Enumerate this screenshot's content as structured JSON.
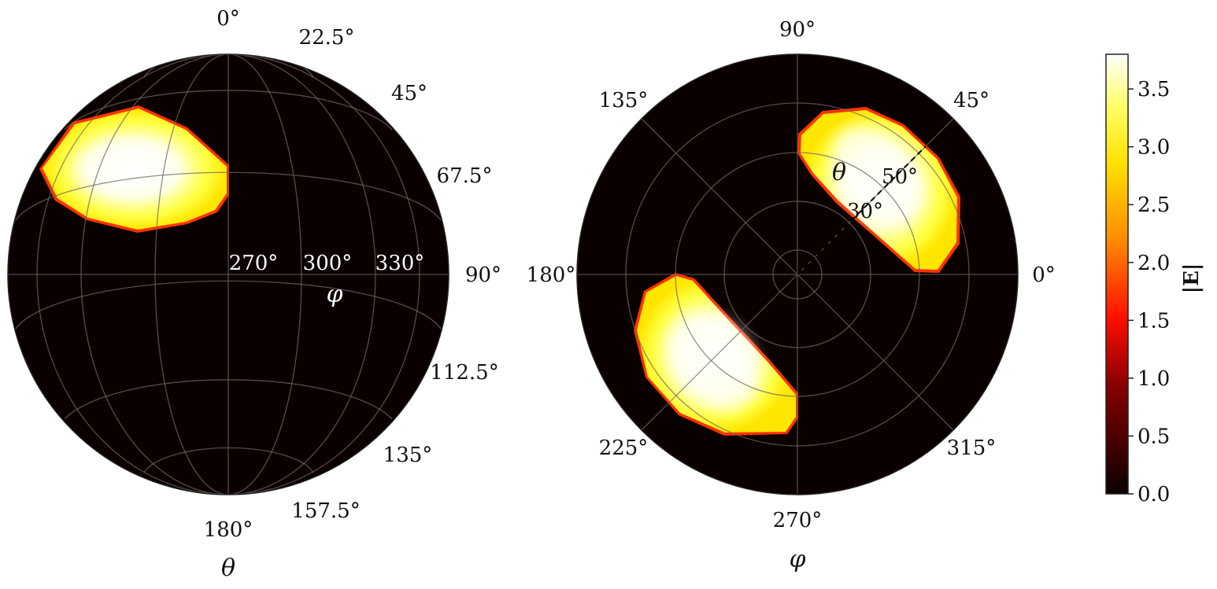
{
  "colors": {
    "background": "#0b0000",
    "colormap": [
      "#0b0000",
      "#b30000",
      "#ff2a00",
      "#ff9a00",
      "#ffe600",
      "#ffff5a",
      "#ffffff"
    ],
    "grid": "#6e6464"
  },
  "chart_data": [
    {
      "type": "heatmap",
      "projection": "orthographic-sphere",
      "title": "",
      "xlabel": "φ",
      "ylabel": "θ",
      "theta_ticks": [
        "0°",
        "22.5°",
        "45°",
        "67.5°",
        "90°",
        "112.5°",
        "135°",
        "157.5°",
        "180°"
      ],
      "theta_tick_values": [
        0,
        22.5,
        45,
        67.5,
        90,
        112.5,
        135,
        157.5,
        180
      ],
      "phi_ticks": [
        "270°",
        "300°",
        "330°"
      ],
      "phi_tick_values": [
        270,
        300,
        330
      ],
      "grid": true,
      "lobes": [
        {
          "theta_range": [
            30,
            75
          ],
          "phi_range": [
            195,
            270
          ],
          "peak": 3.75
        }
      ]
    },
    {
      "type": "heatmap",
      "projection": "polar",
      "title": "",
      "xlabel": "φ",
      "ylabel": "θ",
      "phi_ticks": [
        "0°",
        "45°",
        "90°",
        "135°",
        "180°",
        "225°",
        "270°",
        "315°"
      ],
      "phi_tick_values": [
        0,
        45,
        90,
        135,
        180,
        225,
        270,
        315
      ],
      "theta_ticks": [
        "30°",
        "50°"
      ],
      "theta_tick_values": [
        30,
        50
      ],
      "theta_range": [
        0,
        90
      ],
      "grid": true,
      "lobes": [
        {
          "theta_range": [
            35,
            75
          ],
          "phi_range": [
            10,
            90
          ],
          "peak": 3.75
        },
        {
          "theta_range": [
            35,
            75
          ],
          "phi_range": [
            190,
            270
          ],
          "peak": 3.7
        }
      ]
    }
  ],
  "colorbar": {
    "label": "|E|",
    "vmin": 0.0,
    "vmax": 3.8,
    "ticks": [
      "0.0",
      "0.5",
      "1.0",
      "1.5",
      "2.0",
      "2.5",
      "3.0",
      "3.5"
    ],
    "tick_values": [
      0.0,
      0.5,
      1.0,
      1.5,
      2.0,
      2.5,
      3.0,
      3.5
    ],
    "position": "right"
  }
}
